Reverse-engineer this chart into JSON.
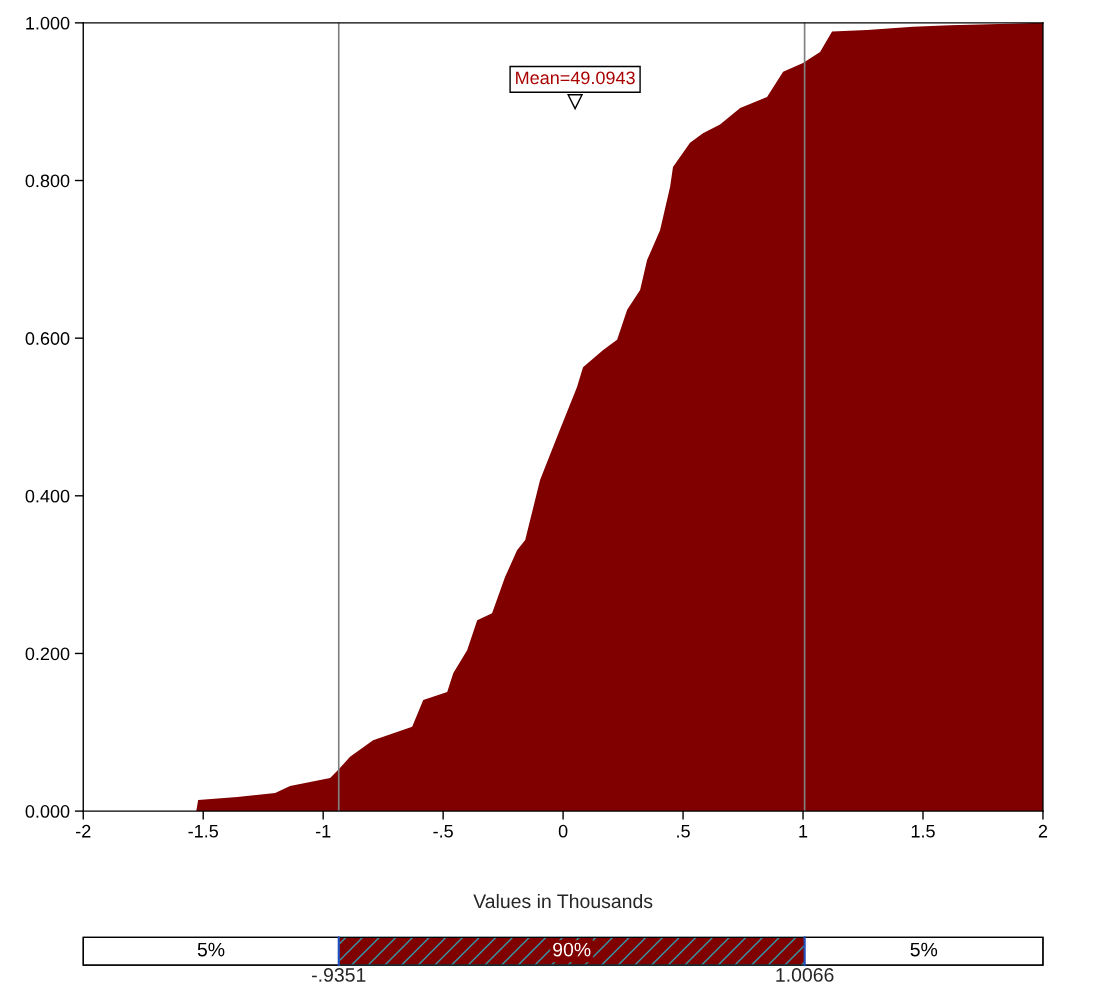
{
  "chart_data": {
    "type": "area",
    "xlabel": "Values in Thousands",
    "series": [
      {
        "color": "#800000",
        "x": [
          -1.529,
          -1.521,
          -1.358,
          -1.2,
          -1.138,
          -0.971,
          -0.938,
          -0.888,
          -0.792,
          -0.629,
          -0.583,
          -0.483,
          -0.458,
          -0.4,
          -0.358,
          -0.296,
          -0.242,
          -0.192,
          -0.158,
          -0.096,
          -0.025,
          0.058,
          0.083,
          0.167,
          0.225,
          0.267,
          0.321,
          0.35,
          0.404,
          0.446,
          0.458,
          0.529,
          0.583,
          0.654,
          0.738,
          0.85,
          0.917,
          1.0,
          1.071,
          1.121,
          1.267,
          1.458,
          1.612,
          2.0
        ],
        "values": [
          0,
          0.014,
          0.018,
          0.023,
          0.032,
          0.042,
          0.052,
          0.069,
          0.09,
          0.107,
          0.141,
          0.151,
          0.175,
          0.204,
          0.242,
          0.251,
          0.297,
          0.331,
          0.344,
          0.42,
          0.475,
          0.538,
          0.563,
          0.585,
          0.598,
          0.636,
          0.661,
          0.699,
          0.737,
          0.792,
          0.817,
          0.848,
          0.86,
          0.871,
          0.892,
          0.906,
          0.938,
          0.949,
          0.963,
          0.989,
          0.991,
          0.995,
          0.997,
          1.0
        ]
      }
    ],
    "xlim": [
      -2,
      2
    ],
    "ylim": [
      0,
      1
    ],
    "xticks": [
      -2,
      -1.5,
      -1,
      {
        "value": -0.5,
        "label": "-.5"
      },
      0,
      {
        "value": 0.5,
        "label": ".5"
      },
      1,
      1.5,
      2
    ],
    "yticks": [
      {
        "value": 0,
        "label": "0.000"
      },
      {
        "value": 0.2,
        "label": "0.200"
      },
      {
        "value": 0.4,
        "label": "0.400"
      },
      {
        "value": 0.6,
        "label": "0.600"
      },
      {
        "value": 0.8,
        "label": "0.800"
      },
      {
        "value": 1,
        "label": "1.000"
      }
    ],
    "ref_lines": [
      {
        "axis": "x",
        "value": -0.9351,
        "color": "#808080"
      },
      {
        "axis": "x",
        "value": 1.0066,
        "color": "#808080"
      }
    ],
    "annotations": [
      {
        "text": "Mean=49.0943",
        "x": 0.05,
        "y": 0.9
      },
      "5%",
      "90%",
      "5%",
      "-.9351",
      "1.0066"
    ],
    "grid": false,
    "legend": false
  }
}
